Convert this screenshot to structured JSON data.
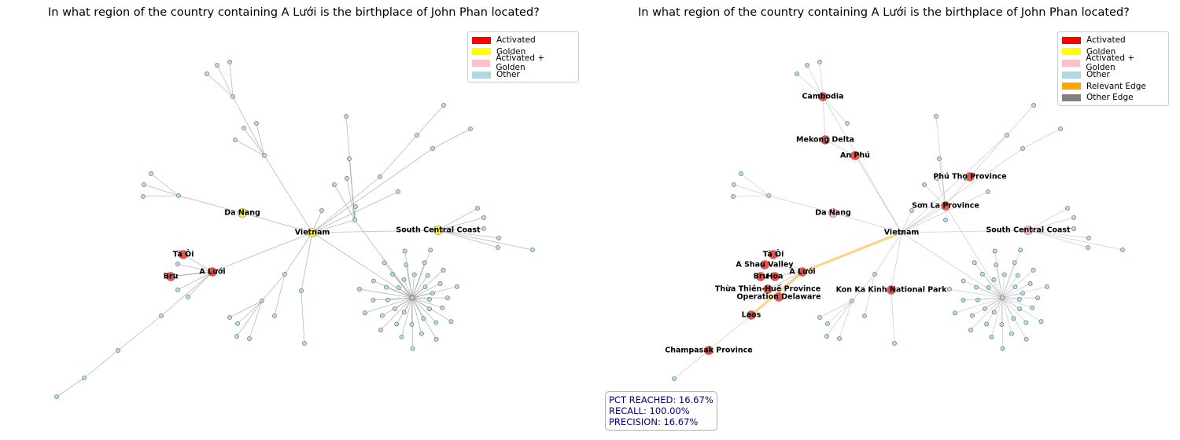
{
  "question": "In what region of the country containing A Lưới is the birthplace of John Phan located?",
  "legend_left": {
    "items": [
      {
        "label": "Activated",
        "color": "#ff0000"
      },
      {
        "label": "Golden",
        "color": "#ffff00"
      },
      {
        "label": "Activated + Golden",
        "color": "#ffc0cb"
      },
      {
        "label": "Other",
        "color": "#add8e6"
      }
    ]
  },
  "legend_right": {
    "items": [
      {
        "label": "Activated",
        "color": "#ff0000"
      },
      {
        "label": "Golden",
        "color": "#ffff00"
      },
      {
        "label": "Activated + Golden",
        "color": "#ffc0cb"
      },
      {
        "label": "Other",
        "color": "#add8e6"
      },
      {
        "label": "Relevant Edge",
        "color": "#ffa500"
      },
      {
        "label": "Other Edge",
        "color": "#808080"
      }
    ]
  },
  "metrics": {
    "pct_reached": "PCT REACHED: 16.67%",
    "recall": "RECALL: 100.00%",
    "precision": "PRECISION: 16.67%"
  },
  "colors": {
    "activated": "#e8534f",
    "golden": "#ffff33",
    "activated_golden": "#ffc0cb",
    "other": "#b8dce4",
    "relevant_edge": "#ffa500",
    "other_edge": "#808080"
  },
  "left_graph": {
    "labels": {
      "vietnam": "Vietnam",
      "da_nang": "Da Nang",
      "south_central_coast": "South Central Coast",
      "ta_oi": "Tà Ôi",
      "bru": "Bru",
      "a_luoi": "A Lưới"
    }
  },
  "right_graph": {
    "labels": {
      "vietnam": "Vietnam",
      "da_nang": "Da Nang",
      "south_central_coast": "South Central Coast",
      "cambodia": "Cambodia",
      "mekong_delta": "Mekong Delta",
      "an_phu": "An Phú",
      "phu_tho": "Phú Thọ Province",
      "son_la": "Sơn La Province",
      "ta_oi": "Tà Ôi",
      "a_shau_valley": "A Shau Valley",
      "bru": "Bru",
      "hoa": "Hoa",
      "a_luoi": "A Lưới",
      "thua_thien_hue": "Thừa Thiên-Huế Province",
      "operation_delaware": "Operation Delaware",
      "kon_ka_kinh": "Kon Ka Kinh National Park",
      "laos": "Laos",
      "champasak": "Champasak Province"
    }
  }
}
